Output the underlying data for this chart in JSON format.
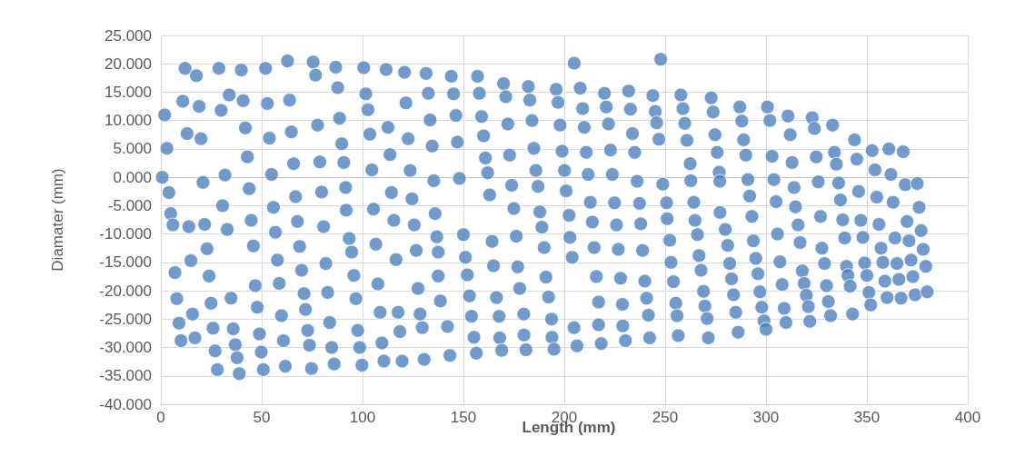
{
  "chart_data": {
    "type": "scatter",
    "xlabel": "Length (mm)",
    "ylabel": "Diamater (mm)",
    "xlim": [
      0,
      400
    ],
    "xticks": [
      0,
      50,
      100,
      150,
      200,
      250,
      300,
      350,
      400
    ],
    "ylim": [
      -40,
      25
    ],
    "yticks": [
      {
        "value": -40,
        "label": "-40.000"
      },
      {
        "value": -35,
        "label": "-35.000"
      },
      {
        "value": -30,
        "label": "-30.000"
      },
      {
        "value": -25,
        "label": "-25.000"
      },
      {
        "value": -20,
        "label": "-20.000"
      },
      {
        "value": -15,
        "label": "-15.000"
      },
      {
        "value": -10,
        "label": "-10.000"
      },
      {
        "value": -5,
        "label": "-5.000"
      },
      {
        "value": 0,
        "label": "0.000"
      },
      {
        "value": 5,
        "label": "5.000"
      },
      {
        "value": 10,
        "label": "10.000"
      },
      {
        "value": 15,
        "label": "15.000"
      },
      {
        "value": 20,
        "label": "20.000"
      },
      {
        "value": 25,
        "label": "25.000"
      }
    ],
    "grid": true,
    "marker": "circle",
    "x": [
      12,
      17.6,
      28.8,
      39.9,
      51.9,
      62.8,
      75.5,
      76.7,
      86.7,
      100.6,
      111.7,
      120.8,
      131.5,
      10.9,
      19,
      29.9,
      33.9,
      40.8,
      52.8,
      63.8,
      87.7,
      101.6,
      102.7,
      121.5,
      132.6,
      1.9,
      13,
      19.9,
      41.9,
      53.8,
      64.7,
      77.7,
      88.6,
      103.6,
      112.6,
      122.6,
      133.5,
      3,
      42.9,
      65.8,
      78.8,
      90.7,
      89.7,
      113.6,
      104.6,
      123.6,
      134.5,
      0.7,
      20.9,
      31.8,
      54.9,
      43.8,
      4,
      66.8,
      79.7,
      91.6,
      114.3,
      124.5,
      135.3,
      4.9,
      30.6,
      55.8,
      105.4,
      91.9,
      136,
      6,
      13.9,
      21.7,
      32.9,
      44.8,
      56.8,
      67.7,
      80.7,
      93.4,
      94.6,
      106.6,
      115.5,
      116.6,
      125.6,
      126.6,
      136.8,
      137.5,
      137.5,
      138.6,
      22.9,
      14.9,
      7,
      23.9,
      45.9,
      57.8,
      68.8,
      69.8,
      81.8,
      95.7,
      107.6,
      127.5,
      46.8,
      58.7,
      71,
      82.7,
      96.7,
      7.9,
      24.9,
      34.8,
      47.8,
      59.8,
      71.7,
      83.7,
      108.7,
      117.6,
      128.5,
      15.7,
      9,
      25.9,
      35.9,
      48.9,
      72.8,
      97.6,
      118.5,
      129.6,
      10,
      16.9,
      26.9,
      36.9,
      37.8,
      49.8,
      60.8,
      73.7,
      84.7,
      98.6,
      109.6,
      28,
      38.9,
      50.8,
      61.7,
      74.7,
      85.9,
      99.7,
      110.6,
      119.6,
      130.5,
      144,
      157,
      169.9,
      182.2,
      196,
      204.9,
      207.9,
      219.9,
      231.9,
      243.9,
      247.8,
      257.8,
      272.8,
      145.1,
      157.9,
      171,
      182.9,
      196.9,
      209.1,
      220.8,
      232.8,
      245.1,
      258.8,
      273.8,
      146.3,
      159,
      172,
      184,
      197.9,
      209.9,
      221.9,
      233.8,
      245.8,
      246.9,
      259.7,
      260.8,
      274.7,
      147,
      160,
      160.9,
      172.9,
      184.9,
      198.9,
      210.9,
      222.9,
      234.9,
      262.4,
      275.8,
      148,
      162,
      173.9,
      185.9,
      187,
      200.1,
      200.9,
      211.8,
      223.8,
      236.1,
      248.8,
      262.7,
      276.8,
      277.1,
      163,
      175,
      187.9,
      202.4,
      212.9,
      224.9,
      237.3,
      250.7,
      264.2,
      277.2,
      213.9,
      225.9,
      237.9,
      251,
      264.8,
      150,
      164.2,
      176.2,
      188.9,
      202.8,
      151,
      190,
      203.9,
      214.8,
      226.8,
      238.8,
      252.3,
      266,
      151.9,
      164.9,
      176.9,
      190.9,
      215.9,
      227.9,
      239.9,
      252.9,
      266.8,
      267.8,
      254.1,
      177.9,
      153,
      166.4,
      192.2,
      217,
      228.8,
      240.8,
      269,
      255.3,
      255.9,
      269.7,
      270.8,
      154,
      167.7,
      179.9,
      193.7,
      241.7,
      142.1,
      204.8,
      217,
      229,
      155.2,
      168,
      180,
      193.9,
      194.9,
      206.3,
      218.3,
      230.3,
      242.3,
      256.5,
      271.4,
      143.3,
      156.4,
      169,
      181,
      287,
      300.7,
      288,
      301.9,
      310.9,
      322.9,
      324,
      333,
      288.9,
      312,
      343.9,
      290,
      303,
      312.9,
      324.9,
      333.9,
      334.9,
      345,
      352.6,
      360.9,
      368,
      291,
      303.9,
      291.9,
      313.9,
      325.9,
      336,
      345.9,
      354,
      361.9,
      369,
      375,
      293,
      305,
      314.6,
      336.9,
      354.9,
      363,
      375.9,
      327,
      338,
      347,
      356,
      369.9,
      279.8,
      293.7,
      305.7,
      315.9,
      316.9,
      327.7,
      339,
      348,
      363.9,
      370.9,
      376.9,
      357,
      377.9,
      281,
      282,
      294.9,
      306.9,
      329,
      339.9,
      348.9,
      357.9,
      364.9,
      371.9,
      379.2,
      296,
      318,
      282.9,
      340.6,
      350,
      358.9,
      365.9,
      372.8,
      308,
      318.9,
      330,
      341.7,
      297,
      283.9,
      320,
      351,
      360,
      366.9,
      373.9,
      379.9,
      297.9,
      309,
      321,
      330.9,
      351.9,
      285,
      332,
      342.9,
      299,
      309.9,
      321.7,
      300,
      286.2
    ],
    "series": [
      {
        "color": "#4f81bd",
        "values": [
          19.2,
          17.9,
          19.2,
          18.9,
          19.2,
          20.5,
          20.3,
          18.0,
          19.4,
          19.3,
          19.0,
          18.5,
          18.3,
          13.4,
          12.5,
          11.8,
          14.5,
          13.5,
          13.0,
          13.6,
          15.8,
          14.7,
          11.9,
          13.1,
          14.8,
          11.0,
          7.7,
          6.8,
          8.7,
          6.9,
          8.0,
          9.2,
          10.4,
          7.6,
          8.8,
          6.8,
          10.1,
          5.1,
          3.6,
          2.4,
          2.7,
          2.6,
          5.9,
          4.0,
          1.3,
          1.2,
          5.5,
          0.0,
          -0.9,
          0.4,
          0.5,
          -2.0,
          -2.7,
          -3.4,
          -2.6,
          -1.8,
          -2.7,
          -3.8,
          -0.6,
          -6.4,
          -5.0,
          -5.3,
          -5.6,
          -5.8,
          -6.4,
          -8.4,
          -8.7,
          -8.3,
          -9.2,
          -7.6,
          -9.7,
          -7.8,
          -8.7,
          -10.8,
          -13.2,
          -11.8,
          -7.6,
          -14.5,
          -8.4,
          -12.9,
          -10.5,
          -13.2,
          -17.4,
          -21.8,
          -12.6,
          -14.7,
          -16.8,
          -17.4,
          -12.1,
          -14.6,
          -12.2,
          -16.4,
          -15.2,
          -17.3,
          -18.8,
          -19.6,
          -19.1,
          -18.7,
          -20.5,
          -20.3,
          -21.4,
          -21.4,
          -22.2,
          -21.3,
          -22.9,
          -24.4,
          -23.3,
          -25.6,
          -23.8,
          -23.8,
          -24.1,
          -24.1,
          -25.7,
          -26.6,
          -26.7,
          -27.6,
          -27.0,
          -27.0,
          -27.2,
          -26.5,
          -28.8,
          -28.3,
          -30.6,
          -29.5,
          -31.8,
          -30.8,
          -28.8,
          -29.6,
          -30.0,
          -30.0,
          -29.2,
          -33.9,
          -34.6,
          -33.9,
          -33.3,
          -33.7,
          -32.9,
          -33.1,
          -32.4,
          -32.4,
          -32.1,
          17.8,
          17.8,
          16.5,
          16.0,
          15.5,
          20.1,
          15.7,
          14.8,
          15.2,
          14.4,
          20.8,
          14.5,
          14.0,
          14.7,
          14.8,
          14.2,
          13.6,
          13.2,
          12.1,
          12.4,
          12.0,
          11.6,
          12.1,
          11.5,
          10.9,
          10.7,
          9.4,
          10.0,
          9.2,
          8.8,
          9.4,
          7.7,
          9.6,
          6.7,
          9.5,
          6.5,
          7.5,
          6.2,
          7.3,
          3.4,
          3.9,
          5.1,
          4.6,
          4.4,
          4.8,
          4.4,
          2.4,
          4.4,
          -0.2,
          0.8,
          -1.4,
          1.2,
          -1.6,
          1.2,
          -2.4,
          0.5,
          0.5,
          -0.7,
          -1.2,
          -0.6,
          0.9,
          -0.7,
          -3.1,
          -5.5,
          -6.1,
          -6.7,
          -4.4,
          -4.5,
          -4.6,
          -4.5,
          -4.4,
          -6.2,
          -7.9,
          -8.4,
          -8.2,
          -7.3,
          -7.6,
          -10.1,
          -11.3,
          -10.4,
          -8.8,
          -10.6,
          -14.1,
          -12.4,
          -14.1,
          -12.4,
          -12.7,
          -12.9,
          -11.1,
          -10.1,
          -17.2,
          -15.6,
          -15.8,
          -17.6,
          -17.5,
          -17.8,
          -18.3,
          -15.0,
          -13.8,
          -16.4,
          -18.4,
          -19.6,
          -20.9,
          -21.2,
          -21.1,
          -22.0,
          -22.4,
          -21.3,
          -20.1,
          -22.2,
          -24.4,
          -22.7,
          -24.9,
          -24.5,
          -24.5,
          -24.1,
          -25.0,
          -24.3,
          -26.3,
          -26.5,
          -26.0,
          -26.2,
          -28.2,
          -28.3,
          -27.8,
          -28.2,
          -30.3,
          -29.7,
          -29.3,
          -28.8,
          -28.3,
          -27.9,
          -28.3,
          -31.4,
          -31.0,
          -30.5,
          -30.4,
          12.4,
          12.4,
          9.9,
          10.0,
          10.8,
          10.5,
          8.6,
          9.2,
          6.6,
          7.5,
          6.6,
          3.9,
          3.7,
          2.6,
          3.6,
          4.4,
          2.3,
          3.2,
          4.7,
          5.0,
          4.5,
          -0.4,
          -0.4,
          -3.3,
          -1.8,
          -0.8,
          -1.0,
          -2.5,
          1.3,
          0.5,
          -1.3,
          -1.1,
          -6.9,
          -4.3,
          -5.2,
          -4.0,
          -3.5,
          -4.4,
          -5.3,
          -6.9,
          -7.5,
          -7.6,
          -8.3,
          -7.8,
          -9.2,
          -11.2,
          -10.0,
          -8.4,
          -11.5,
          -12.5,
          -10.7,
          -10.6,
          -10.7,
          -11.2,
          -9.4,
          -12.5,
          -12.7,
          -12.0,
          -15.2,
          -14.3,
          -14.9,
          -15.2,
          -15.7,
          -15.1,
          -15.0,
          -15.2,
          -14.6,
          -15.7,
          -17.0,
          -16.5,
          -17.9,
          -17.3,
          -17.3,
          -18.3,
          -18.0,
          -17.5,
          -18.9,
          -18.7,
          -19.1,
          -19.2,
          -20.2,
          -20.7,
          -20.8,
          -20.3,
          -21.2,
          -21.3,
          -20.7,
          -20.2,
          -22.9,
          -23.1,
          -22.8,
          -21.9,
          -22.5,
          -23.8,
          -24.4,
          -24.1,
          -25.3,
          -25.6,
          -25.4,
          -26.8,
          -27.3
        ]
      }
    ]
  }
}
